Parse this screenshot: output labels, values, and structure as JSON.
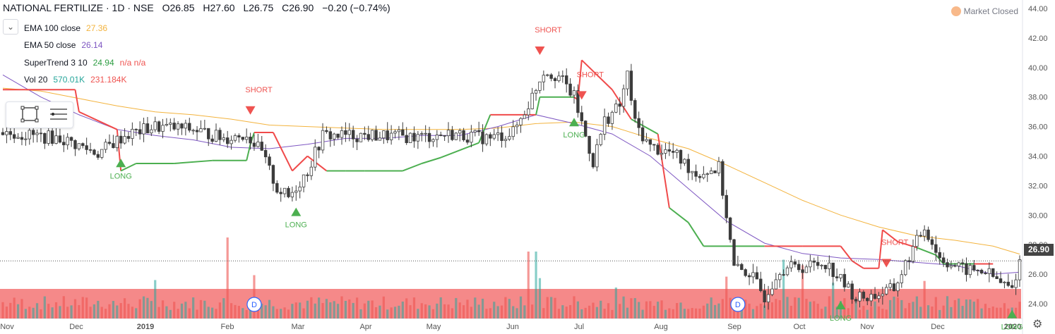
{
  "header": {
    "title": "NATIONAL FERTILIZE · 1D · NSE",
    "open": "O26.85",
    "high": "H27.60",
    "low": "L26.75",
    "close": "C26.90",
    "change": "−0.20 (−0.74%)"
  },
  "indicators": [
    {
      "label": "EMA 100 close",
      "value": "27.36",
      "value2": "",
      "color": "#f3b33d"
    },
    {
      "label": "EMA 50 close",
      "value": "26.14",
      "value2": "",
      "color": "#7e57c2"
    },
    {
      "label": "SuperTrend 3 10",
      "value": "24.94",
      "value2": "n/a n/a",
      "color": "#2f9e44"
    },
    {
      "label": "Vol 20",
      "value": "570.01K",
      "value2": "231.184K",
      "color": "#26a69a"
    }
  ],
  "market_status": "Market Closed",
  "last_price": "26.90",
  "icons": {
    "collapse": "chevron-down-icon",
    "settings": "gear-icon",
    "tools": [
      "rectangle-icon",
      "lines-icon"
    ]
  },
  "colors": {
    "up": "#26a69a",
    "down": "#ef5350",
    "candle": "#3c3c3c",
    "supertrend_up": "#4caf50",
    "supertrend_down": "#f04a4a",
    "ema100": "#f3b33d",
    "ema50": "#7e57c2"
  },
  "chart_data": {
    "type": "candlestick",
    "ylim": [
      23,
      44
    ],
    "y_ticks": [
      "24.00",
      "26.00",
      "28.00",
      "30.00",
      "32.00",
      "34.00",
      "36.00",
      "38.00",
      "40.00",
      "42.00",
      "44.00"
    ],
    "x_ticks": [
      "Nov",
      "Dec",
      "2019",
      "Feb",
      "Mar",
      "Apr",
      "May",
      "Jun",
      "Jul",
      "Aug",
      "Sep",
      "Oct",
      "Nov",
      "Dec",
      "2020"
    ],
    "series": [
      {
        "name": "EMA 100 close",
        "points": [
          [
            0,
            38.6
          ],
          [
            10,
            38.4
          ],
          [
            20,
            37.9
          ],
          [
            30,
            37.4
          ],
          [
            40,
            37.0
          ],
          [
            50,
            36.8
          ],
          [
            60,
            36.5
          ],
          [
            70,
            36.1
          ],
          [
            80,
            36.0
          ],
          [
            90,
            35.9
          ],
          [
            100,
            35.8
          ],
          [
            110,
            35.8
          ],
          [
            120,
            35.8
          ],
          [
            130,
            35.9
          ],
          [
            140,
            36.2
          ],
          [
            150,
            36.3
          ],
          [
            160,
            36.0
          ],
          [
            170,
            35.2
          ],
          [
            180,
            34.5
          ],
          [
            190,
            33.4
          ],
          [
            200,
            32.2
          ],
          [
            210,
            31.0
          ],
          [
            220,
            30.0
          ],
          [
            230,
            29.2
          ],
          [
            240,
            28.6
          ],
          [
            250,
            28.3
          ],
          [
            260,
            27.9
          ],
          [
            267,
            27.36
          ]
        ]
      },
      {
        "name": "EMA 50 close",
        "points": [
          [
            0,
            39.5
          ],
          [
            10,
            38.0
          ],
          [
            20,
            36.8
          ],
          [
            30,
            35.8
          ],
          [
            40,
            35.4
          ],
          [
            50,
            35.1
          ],
          [
            60,
            34.6
          ],
          [
            70,
            34.5
          ],
          [
            80,
            34.8
          ],
          [
            90,
            35.2
          ],
          [
            100,
            35.2
          ],
          [
            110,
            35.4
          ],
          [
            120,
            35.4
          ],
          [
            130,
            36.0
          ],
          [
            140,
            36.8
          ],
          [
            150,
            36.2
          ],
          [
            160,
            35.5
          ],
          [
            170,
            34.0
          ],
          [
            180,
            31.8
          ],
          [
            190,
            29.6
          ],
          [
            200,
            28.1
          ],
          [
            210,
            27.4
          ],
          [
            220,
            27.1
          ],
          [
            230,
            27.0
          ],
          [
            240,
            26.8
          ],
          [
            250,
            26.6
          ],
          [
            260,
            26.0
          ],
          [
            267,
            26.14
          ]
        ]
      },
      {
        "name": "SuperTrend 3 10",
        "points": [
          [
            0,
            38.5
          ],
          [
            5,
            38.5
          ],
          [
            6,
            38.5
          ],
          [
            19,
            38.5
          ],
          [
            20,
            37.0
          ],
          [
            30,
            35.8
          ],
          [
            31,
            33.0
          ],
          [
            35,
            33.5
          ],
          [
            45,
            33.5
          ],
          [
            55,
            33.7
          ],
          [
            64,
            33.7
          ],
          [
            65,
            34.8
          ],
          [
            66,
            35.6
          ],
          [
            71,
            35.6
          ],
          [
            76,
            33.0
          ],
          [
            80,
            34.0
          ],
          [
            85,
            33.0
          ],
          [
            90,
            33.0
          ],
          [
            95,
            33.0
          ],
          [
            105,
            33.0
          ],
          [
            110,
            33.5
          ],
          [
            115,
            33.9
          ],
          [
            125,
            34.9
          ],
          [
            128,
            36.8
          ],
          [
            140,
            36.8
          ],
          [
            141,
            38.0
          ],
          [
            150,
            38.0
          ],
          [
            151,
            37.8
          ],
          [
            152,
            40.5
          ],
          [
            160,
            38.5
          ],
          [
            165,
            36.5
          ],
          [
            172,
            35.5
          ],
          [
            175,
            30.5
          ],
          [
            180,
            29.5
          ],
          [
            184,
            27.9
          ],
          [
            200,
            27.9
          ],
          [
            210,
            27.9
          ],
          [
            220,
            27.9
          ],
          [
            223,
            26.9
          ],
          [
            226,
            26.4
          ],
          [
            230,
            26.4
          ],
          [
            231,
            29.0
          ],
          [
            235,
            28.2
          ],
          [
            240,
            27.8
          ],
          [
            245,
            27.3
          ],
          [
            247,
            26.7
          ],
          [
            255,
            26.7
          ],
          [
            260,
            26.7
          ]
        ]
      }
    ],
    "volume": {
      "name": "Vol 20",
      "ma": "231.184K",
      "last": "570.01K"
    },
    "signals": [
      {
        "label": "LONG",
        "index": 31
      },
      {
        "label": "SHORT",
        "index": 65
      },
      {
        "label": "LONG",
        "index": 77
      },
      {
        "label": "SHORT",
        "index": 141
      },
      {
        "label": "SHORT",
        "index": 152
      },
      {
        "label": "LONG",
        "index": 150
      },
      {
        "label": "LONG",
        "index": 220
      },
      {
        "label": "SHORT",
        "index": 232
      },
      {
        "label": "LONG",
        "index": 265
      }
    ],
    "events": [
      {
        "label": "D",
        "index": 66
      },
      {
        "label": "D",
        "index": 193
      }
    ],
    "last_price": 26.9
  }
}
